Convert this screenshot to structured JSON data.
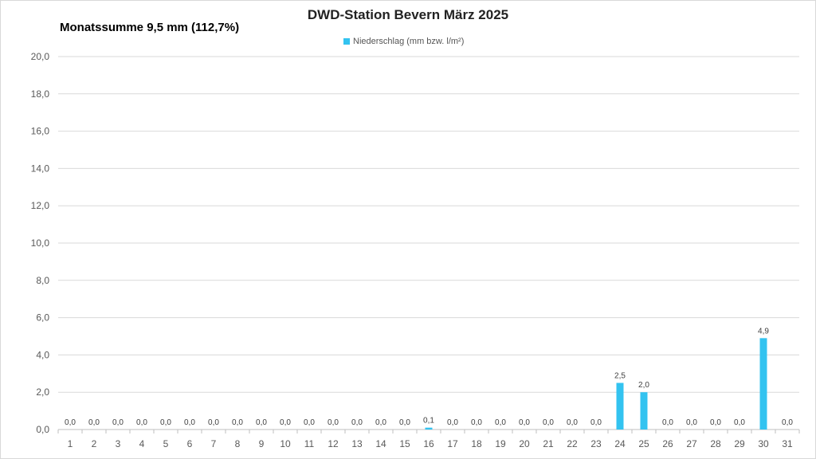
{
  "chart_data": {
    "type": "bar",
    "title": "DWD-Station  Bevern März 2025",
    "subtitle": "Monatssumme 9,5 mm (112,7%)",
    "xlabel": "",
    "ylabel": "",
    "ylim": [
      0,
      20
    ],
    "yticks": [
      "0,0",
      "2,0",
      "4,0",
      "6,0",
      "8,0",
      "10,0",
      "12,0",
      "14,0",
      "16,0",
      "18,0",
      "20,0"
    ],
    "grid": true,
    "legend_position": "top-center",
    "categories": [
      "1",
      "2",
      "3",
      "4",
      "5",
      "6",
      "7",
      "8",
      "9",
      "10",
      "11",
      "12",
      "13",
      "14",
      "15",
      "16",
      "17",
      "18",
      "19",
      "20",
      "21",
      "22",
      "23",
      "24",
      "25",
      "26",
      "27",
      "28",
      "29",
      "30",
      "31"
    ],
    "series": [
      {
        "name": "Niederschlag (mm bzw. l/m²)",
        "color": "#33c3f0",
        "values": [
          0,
          0,
          0,
          0,
          0,
          0,
          0,
          0,
          0,
          0,
          0,
          0,
          0,
          0,
          0,
          0.1,
          0,
          0,
          0,
          0,
          0,
          0,
          0,
          2.5,
          2.0,
          0,
          0,
          0,
          0,
          4.9,
          0
        ],
        "labels": [
          "0,0",
          "0,0",
          "0,0",
          "0,0",
          "0,0",
          "0,0",
          "0,0",
          "0,0",
          "0,0",
          "0,0",
          "0,0",
          "0,0",
          "0,0",
          "0,0",
          "0,0",
          "0,1",
          "0,0",
          "0,0",
          "0,0",
          "0,0",
          "0,0",
          "0,0",
          "0,0",
          "2,5",
          "2,0",
          "0,0",
          "0,0",
          "0,0",
          "0,0",
          "4,9",
          "0,0"
        ]
      }
    ]
  }
}
